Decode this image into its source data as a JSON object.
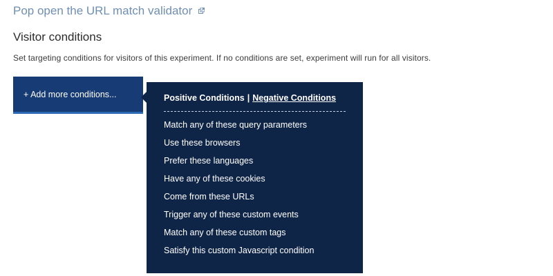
{
  "validator_link": {
    "label": "Pop open the URL match validator",
    "icon": "external-link-icon"
  },
  "visitor_conditions": {
    "title": "Visitor conditions",
    "description": "Set targeting conditions for visitors of this experiment. If no conditions are set, experiment will run for all visitors."
  },
  "add_button": {
    "label": "+ Add more conditions..."
  },
  "dropdown": {
    "tabs": {
      "positive": "Positive Conditions",
      "separator": "|",
      "negative": "Negative Conditions"
    },
    "items": [
      {
        "label": "Match any of these query parameters"
      },
      {
        "label": "Use these browsers"
      },
      {
        "label": "Prefer these languages"
      },
      {
        "label": "Have any of these cookies"
      },
      {
        "label": "Come from these URLs"
      },
      {
        "label": "Trigger any of these custom events"
      },
      {
        "label": "Match any of these custom tags"
      },
      {
        "label": "Satisfy this custom Javascript condition"
      }
    ]
  },
  "colors": {
    "link": "#6f8fb3",
    "button_bg": "#173b74",
    "dropdown_bg": "#0f2547"
  }
}
